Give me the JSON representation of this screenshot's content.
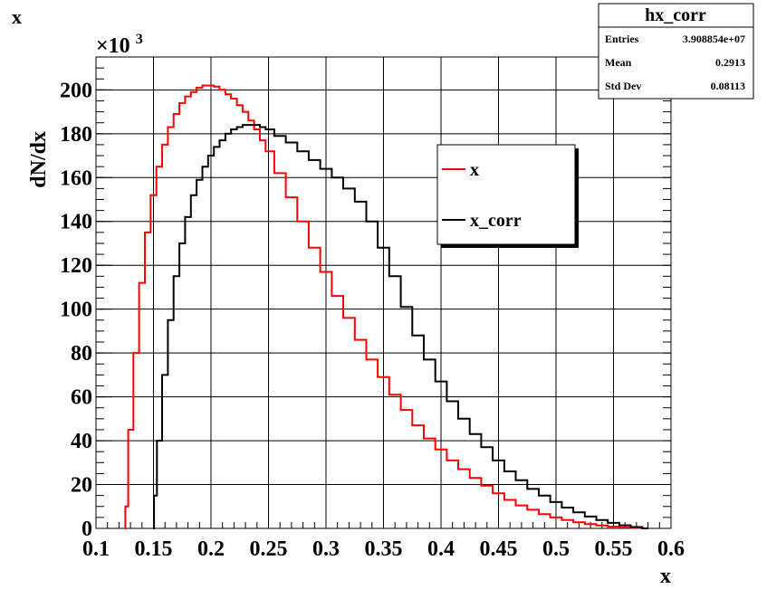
{
  "canvas_title": "x",
  "stats_box": {
    "title": "hx_corr",
    "rows": [
      {
        "label": "Entries",
        "value": "3.908854e+07"
      },
      {
        "label": "Mean",
        "value": "0.2913"
      },
      {
        "label": "Std Dev",
        "value": "0.08113"
      }
    ]
  },
  "chart_data": {
    "type": "line",
    "title": "",
    "xlabel": "x",
    "ylabel": "dN/dx",
    "y_multiplier": "×10",
    "y_multiplier_exp": "3",
    "xlim": [
      0.1,
      0.6
    ],
    "ylim": [
      0,
      215
    ],
    "grid": true,
    "legend_position": "upper-right",
    "x_ticks": [
      0.1,
      0.15,
      0.2,
      0.25,
      0.3,
      0.35,
      0.4,
      0.45,
      0.5,
      0.55,
      0.6
    ],
    "x_tick_labels": [
      "0.1",
      "0.15",
      "0.2",
      "0.25",
      "0.3",
      "0.35",
      "0.4",
      "0.45",
      "0.5",
      "0.55",
      "0.6"
    ],
    "y_ticks": [
      0,
      20,
      40,
      60,
      80,
      100,
      120,
      140,
      160,
      180,
      200
    ],
    "y_tick_labels": [
      "0",
      "20",
      "40",
      "60",
      "80",
      "100",
      "120",
      "140",
      "160",
      "180",
      "200"
    ],
    "series": [
      {
        "name": "x",
        "color": "#ff0000",
        "points": [
          [
            0.125,
            0
          ],
          [
            0.126,
            10
          ],
          [
            0.13,
            45
          ],
          [
            0.135,
            80
          ],
          [
            0.14,
            112
          ],
          [
            0.145,
            135
          ],
          [
            0.15,
            152
          ],
          [
            0.155,
            165
          ],
          [
            0.16,
            175
          ],
          [
            0.165,
            183
          ],
          [
            0.17,
            189
          ],
          [
            0.175,
            194
          ],
          [
            0.18,
            197
          ],
          [
            0.185,
            199
          ],
          [
            0.19,
            201
          ],
          [
            0.195,
            202
          ],
          [
            0.2,
            202
          ],
          [
            0.205,
            201.5
          ],
          [
            0.21,
            200
          ],
          [
            0.215,
            198
          ],
          [
            0.22,
            196
          ],
          [
            0.225,
            193
          ],
          [
            0.23,
            190
          ],
          [
            0.235,
            186
          ],
          [
            0.24,
            182
          ],
          [
            0.245,
            177
          ],
          [
            0.25,
            172
          ],
          [
            0.26,
            162
          ],
          [
            0.27,
            151
          ],
          [
            0.28,
            140
          ],
          [
            0.29,
            128
          ],
          [
            0.3,
            117
          ],
          [
            0.31,
            106
          ],
          [
            0.32,
            96
          ],
          [
            0.33,
            86
          ],
          [
            0.34,
            77
          ],
          [
            0.35,
            69
          ],
          [
            0.36,
            61
          ],
          [
            0.37,
            54
          ],
          [
            0.38,
            47
          ],
          [
            0.39,
            41
          ],
          [
            0.4,
            36
          ],
          [
            0.41,
            31
          ],
          [
            0.42,
            27
          ],
          [
            0.43,
            23
          ],
          [
            0.44,
            19.5
          ],
          [
            0.45,
            16
          ],
          [
            0.46,
            13
          ],
          [
            0.47,
            10.5
          ],
          [
            0.48,
            8.5
          ],
          [
            0.49,
            6.5
          ],
          [
            0.5,
            5
          ],
          [
            0.51,
            3.8
          ],
          [
            0.52,
            2.8
          ],
          [
            0.53,
            2
          ],
          [
            0.54,
            1.3
          ],
          [
            0.55,
            0.8
          ],
          [
            0.56,
            0.4
          ],
          [
            0.57,
            0.2
          ],
          [
            0.58,
            0
          ]
        ]
      },
      {
        "name": "x_corr",
        "color": "#000000",
        "points": [
          [
            0.15,
            0
          ],
          [
            0.151,
            15
          ],
          [
            0.155,
            40
          ],
          [
            0.16,
            70
          ],
          [
            0.165,
            95
          ],
          [
            0.17,
            115
          ],
          [
            0.175,
            130
          ],
          [
            0.18,
            142
          ],
          [
            0.185,
            152
          ],
          [
            0.19,
            159
          ],
          [
            0.195,
            165
          ],
          [
            0.2,
            170
          ],
          [
            0.205,
            174
          ],
          [
            0.21,
            177
          ],
          [
            0.215,
            180
          ],
          [
            0.22,
            182
          ],
          [
            0.225,
            183
          ],
          [
            0.23,
            184
          ],
          [
            0.235,
            184
          ],
          [
            0.24,
            184
          ],
          [
            0.245,
            183
          ],
          [
            0.25,
            182
          ],
          [
            0.26,
            179
          ],
          [
            0.27,
            176
          ],
          [
            0.28,
            172
          ],
          [
            0.29,
            168
          ],
          [
            0.3,
            164
          ],
          [
            0.31,
            160
          ],
          [
            0.32,
            155
          ],
          [
            0.33,
            149
          ],
          [
            0.34,
            140
          ],
          [
            0.35,
            128
          ],
          [
            0.36,
            115
          ],
          [
            0.37,
            101
          ],
          [
            0.38,
            88
          ],
          [
            0.39,
            77
          ],
          [
            0.4,
            67
          ],
          [
            0.41,
            58
          ],
          [
            0.42,
            50
          ],
          [
            0.43,
            43
          ],
          [
            0.44,
            37
          ],
          [
            0.45,
            31
          ],
          [
            0.46,
            26
          ],
          [
            0.47,
            22
          ],
          [
            0.48,
            18
          ],
          [
            0.49,
            15
          ],
          [
            0.5,
            12
          ],
          [
            0.51,
            9.5
          ],
          [
            0.52,
            7.3
          ],
          [
            0.53,
            5.4
          ],
          [
            0.54,
            3.8
          ],
          [
            0.55,
            2.5
          ],
          [
            0.56,
            1.4
          ],
          [
            0.57,
            0.6
          ],
          [
            0.58,
            0
          ]
        ]
      }
    ]
  }
}
